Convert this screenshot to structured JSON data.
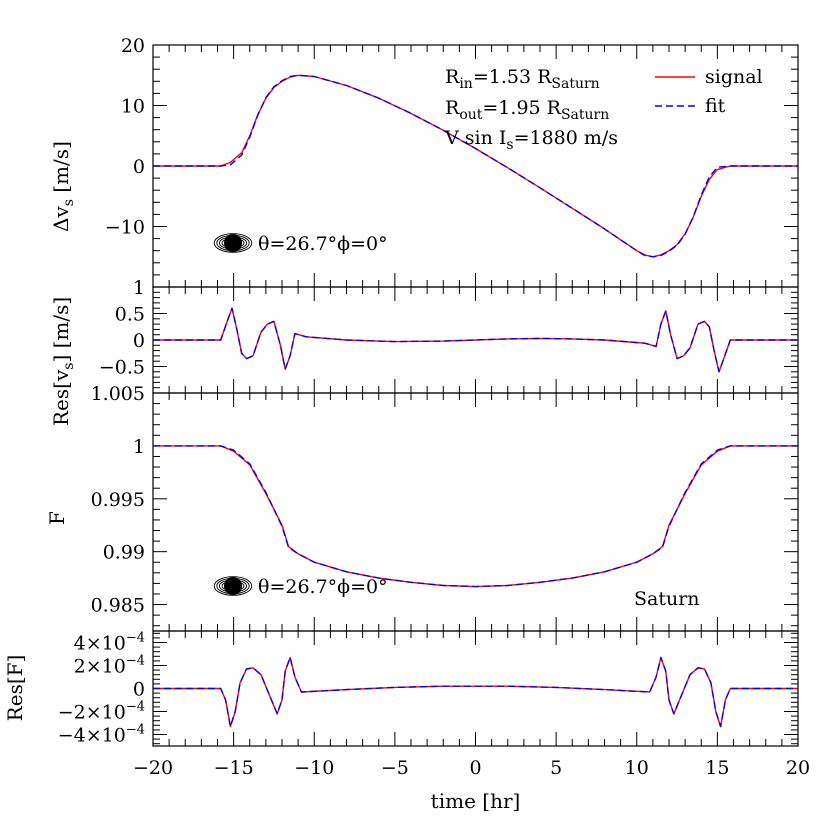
{
  "chart_data": [
    {
      "panel": "delta_v",
      "type": "line",
      "ylabel": "Δv_s [m/s]",
      "xlim": [
        -20,
        20
      ],
      "ylim": [
        -20,
        20
      ],
      "yticks": [
        -10,
        0,
        10,
        20
      ],
      "ytick_labels": [
        "−10",
        "0",
        "10",
        "20"
      ],
      "annotations": {
        "rin_text": "R",
        "rin_sub": "in",
        "rin_value": "=1.53 R",
        "rin_unit_sub": "Saturn",
        "rout_text": "R",
        "rout_sub": "out",
        "rout_value": "=1.95 R",
        "rout_unit_sub": "Saturn",
        "vsini_text": "V sin I",
        "vsini_sub": "s",
        "vsini_value": "=1880 m/s",
        "angle_label": "θ=26.7°ϕ=0°"
      },
      "legend": {
        "placement": "top-right",
        "entries": [
          "signal",
          "fit"
        ]
      },
      "series": [
        {
          "name": "signal",
          "color": "#ff0000",
          "style": "solid",
          "x": [
            -20,
            -15.8,
            -15.2,
            -14.5,
            -14,
            -13.5,
            -13,
            -12.5,
            -12,
            -11.5,
            -11,
            -10,
            -8,
            -6,
            -4,
            -2,
            0,
            2,
            4,
            6,
            8,
            9,
            10,
            10.5,
            11,
            11.5,
            12,
            12.5,
            13,
            13.5,
            14,
            14.5,
            15,
            15.8,
            20
          ],
          "y": [
            0,
            0,
            0.6,
            2.2,
            5.0,
            8.5,
            11.2,
            13.0,
            14.0,
            14.7,
            15.0,
            14.8,
            13.3,
            11.2,
            8.7,
            5.9,
            2.9,
            -0.3,
            -3.6,
            -7.0,
            -10.4,
            -12.2,
            -14.0,
            -14.7,
            -15.0,
            -14.7,
            -14.0,
            -13.0,
            -11.2,
            -8.5,
            -5.0,
            -2.2,
            -0.6,
            0,
            0
          ]
        },
        {
          "name": "fit",
          "color": "#0000ff",
          "style": "dashed",
          "x": [
            -20,
            -15.8,
            -15.2,
            -14.5,
            -14,
            -13.5,
            -13,
            -12.5,
            -12,
            -11.5,
            -11,
            -10,
            -8,
            -6,
            -4,
            -2,
            0,
            2,
            4,
            6,
            8,
            9,
            10,
            10.5,
            11,
            11.5,
            12,
            12.5,
            13,
            13.5,
            14,
            14.5,
            15,
            15.8,
            20
          ],
          "y": [
            0,
            0,
            0.2,
            1.8,
            4.8,
            8.4,
            11.3,
            13.1,
            14.1,
            14.8,
            15.0,
            14.8,
            13.3,
            11.2,
            8.7,
            5.9,
            2.9,
            -0.3,
            -3.6,
            -7.0,
            -10.4,
            -12.2,
            -14.0,
            -14.8,
            -15.0,
            -14.8,
            -14.1,
            -13.1,
            -11.3,
            -8.4,
            -4.8,
            -1.8,
            -0.2,
            0,
            0
          ]
        }
      ]
    },
    {
      "panel": "res_v",
      "type": "line",
      "ylabel": "Res[v_s] [m/s]",
      "xlim": [
        -20,
        20
      ],
      "ylim": [
        -1,
        1
      ],
      "yticks": [
        -0.5,
        0,
        0.5,
        1
      ],
      "ytick_labels": [
        "−0.5",
        "0",
        "0.5",
        "1"
      ],
      "series": [
        {
          "name": "signal",
          "color": "#ff0000",
          "style": "solid",
          "x": [
            -20,
            -15.8,
            -15.4,
            -15.1,
            -14.8,
            -14.5,
            -14.2,
            -13.8,
            -13.3,
            -12.9,
            -12.5,
            -12.1,
            -11.8,
            -11.5,
            -11.2,
            -10.5,
            -8,
            -5,
            -2,
            0,
            2,
            4,
            6,
            8,
            10.5,
            11.2,
            11.5,
            11.8,
            12.1,
            12.5,
            12.9,
            13.3,
            13.8,
            14.2,
            14.5,
            14.8,
            15.1,
            15.4,
            15.8,
            20
          ],
          "y": [
            0,
            0,
            0.35,
            0.6,
            0.2,
            -0.25,
            -0.35,
            -0.3,
            0.15,
            0.3,
            0.35,
            -0.1,
            -0.55,
            -0.3,
            0.12,
            0.06,
            0,
            -0.03,
            -0.02,
            0,
            0.02,
            0.03,
            0.02,
            0,
            -0.06,
            -0.12,
            0.3,
            0.55,
            0.1,
            -0.35,
            -0.3,
            -0.15,
            0.3,
            0.35,
            0.25,
            -0.2,
            -0.6,
            -0.35,
            0,
            0
          ]
        },
        {
          "name": "fit",
          "color": "#0000ff",
          "style": "dashed",
          "x": [
            -20,
            -15.8,
            -15.4,
            -15.1,
            -14.8,
            -14.5,
            -14.2,
            -13.8,
            -13.3,
            -12.9,
            -12.5,
            -12.1,
            -11.8,
            -11.5,
            -11.2,
            -10.5,
            -8,
            -5,
            -2,
            0,
            2,
            4,
            6,
            8,
            10.5,
            11.2,
            11.5,
            11.8,
            12.1,
            12.5,
            12.9,
            13.3,
            13.8,
            14.2,
            14.5,
            14.8,
            15.1,
            15.4,
            15.8,
            20
          ],
          "y": [
            0,
            0,
            0.35,
            0.6,
            0.2,
            -0.25,
            -0.35,
            -0.3,
            0.15,
            0.3,
            0.35,
            -0.1,
            -0.55,
            -0.3,
            0.12,
            0.06,
            0,
            -0.03,
            -0.02,
            0,
            0.02,
            0.03,
            0.02,
            0,
            -0.06,
            -0.12,
            0.3,
            0.55,
            0.1,
            -0.35,
            -0.3,
            -0.15,
            0.3,
            0.35,
            0.25,
            -0.2,
            -0.6,
            -0.35,
            0,
            0
          ]
        }
      ]
    },
    {
      "panel": "flux",
      "type": "line",
      "ylabel": "F",
      "xlim": [
        -20,
        20
      ],
      "ylim": [
        0.9825,
        1.005
      ],
      "yticks": [
        0.985,
        0.99,
        0.995,
        1,
        1.005
      ],
      "ytick_labels": [
        "0.985",
        "0.99",
        "0.995",
        "1",
        "1.005"
      ],
      "annotations": {
        "angle_label": "θ=26.7°ϕ=0°",
        "planet_label": "Saturn"
      },
      "series": [
        {
          "name": "signal",
          "color": "#ff0000",
          "style": "solid",
          "x": [
            -20,
            -15.8,
            -15,
            -14,
            -13,
            -12,
            -11.6,
            -11,
            -10,
            -8,
            -6,
            -4,
            -2,
            0,
            2,
            4,
            6,
            8,
            10,
            11,
            11.6,
            12,
            13,
            14,
            15,
            15.8,
            20
          ],
          "y": [
            1,
            1,
            0.9995,
            0.9982,
            0.9955,
            0.9925,
            0.9905,
            0.9898,
            0.989,
            0.9881,
            0.9875,
            0.9871,
            0.9868,
            0.9867,
            0.9868,
            0.9871,
            0.9875,
            0.9881,
            0.989,
            0.9898,
            0.9905,
            0.9925,
            0.9955,
            0.9982,
            0.9995,
            1,
            1
          ]
        },
        {
          "name": "fit",
          "color": "#0000ff",
          "style": "dashed",
          "x": [
            -20,
            -15.8,
            -15,
            -14,
            -13,
            -12,
            -11.6,
            -11,
            -10,
            -8,
            -6,
            -4,
            -2,
            0,
            2,
            4,
            6,
            8,
            10,
            11,
            11.6,
            12,
            13,
            14,
            15,
            15.8,
            20
          ],
          "y": [
            1,
            1,
            0.9996,
            0.9983,
            0.9956,
            0.9924,
            0.9904,
            0.9898,
            0.989,
            0.9881,
            0.9875,
            0.9871,
            0.9868,
            0.9867,
            0.9868,
            0.9871,
            0.9875,
            0.9881,
            0.989,
            0.9898,
            0.9904,
            0.9924,
            0.9956,
            0.9983,
            0.9996,
            1,
            1
          ]
        }
      ]
    },
    {
      "panel": "res_f",
      "type": "line",
      "ylabel": "Res[F]",
      "xlabel": "time [hr]",
      "xlim": [
        -20,
        20
      ],
      "xticks": [
        -20,
        -15,
        -10,
        -5,
        0,
        5,
        10,
        15,
        20
      ],
      "xtick_labels": [
        "−20",
        "−15",
        "−10",
        "−5",
        "0",
        "5",
        "10",
        "15",
        "20"
      ],
      "ylim": [
        -0.0005,
        0.0005
      ],
      "yticks": [
        -0.0004,
        -0.0002,
        0,
        0.0002,
        0.0004
      ],
      "ytick_mantissa": [
        "−4×10",
        "−2×10",
        "0",
        "2×10",
        "4×10"
      ],
      "ytick_exponent": "−4",
      "series": [
        {
          "name": "signal",
          "color": "#ff0000",
          "style": "solid",
          "x": [
            -20,
            -15.8,
            -15.5,
            -15.2,
            -14.9,
            -14.6,
            -14.2,
            -13.8,
            -13.3,
            -12.8,
            -12.3,
            -12,
            -11.8,
            -11.5,
            -11.2,
            -10.8,
            -8,
            -5,
            -2,
            0,
            2,
            5,
            8,
            10.8,
            11.2,
            11.5,
            11.8,
            12,
            12.3,
            12.8,
            13.3,
            13.8,
            14.2,
            14.6,
            14.9,
            15.2,
            15.5,
            15.8,
            20
          ],
          "y": [
            0,
            0,
            -0.0001,
            -0.00033,
            -0.0002,
            5e-05,
            0.00017,
            0.00018,
            0.00012,
            -5e-05,
            -0.00022,
            -0.0001,
            0.00015,
            0.00027,
            0.0001,
            -3e-05,
            -1e-05,
            1e-05,
            2e-05,
            2e-05,
            2e-05,
            1e-05,
            -1e-05,
            -3e-05,
            0.0001,
            0.00027,
            0.00015,
            -0.0001,
            -0.00022,
            -5e-05,
            0.00012,
            0.00018,
            0.00017,
            5e-05,
            -0.0002,
            -0.00033,
            -0.0001,
            0,
            0
          ]
        },
        {
          "name": "fit",
          "color": "#0000ff",
          "style": "dashed",
          "x": [
            -20,
            -15.8,
            -15.5,
            -15.2,
            -14.9,
            -14.6,
            -14.2,
            -13.8,
            -13.3,
            -12.8,
            -12.3,
            -12,
            -11.8,
            -11.5,
            -11.2,
            -10.8,
            -8,
            -5,
            -2,
            0,
            2,
            5,
            8,
            10.8,
            11.2,
            11.5,
            11.8,
            12,
            12.3,
            12.8,
            13.3,
            13.8,
            14.2,
            14.6,
            14.9,
            15.2,
            15.5,
            15.8,
            20
          ],
          "y": [
            0,
            0,
            -0.0001,
            -0.00033,
            -0.0002,
            5e-05,
            0.00017,
            0.00018,
            0.00012,
            -5e-05,
            -0.00022,
            -0.0001,
            0.00015,
            0.00027,
            0.0001,
            -3e-05,
            -1e-05,
            1e-05,
            2e-05,
            2e-05,
            2e-05,
            1e-05,
            -1e-05,
            -3e-05,
            0.0001,
            0.00027,
            0.00015,
            -0.0001,
            -0.00022,
            -5e-05,
            0.00012,
            0.00018,
            0.00017,
            5e-05,
            -0.0002,
            -0.00033,
            -0.0001,
            0,
            0
          ]
        }
      ]
    }
  ]
}
